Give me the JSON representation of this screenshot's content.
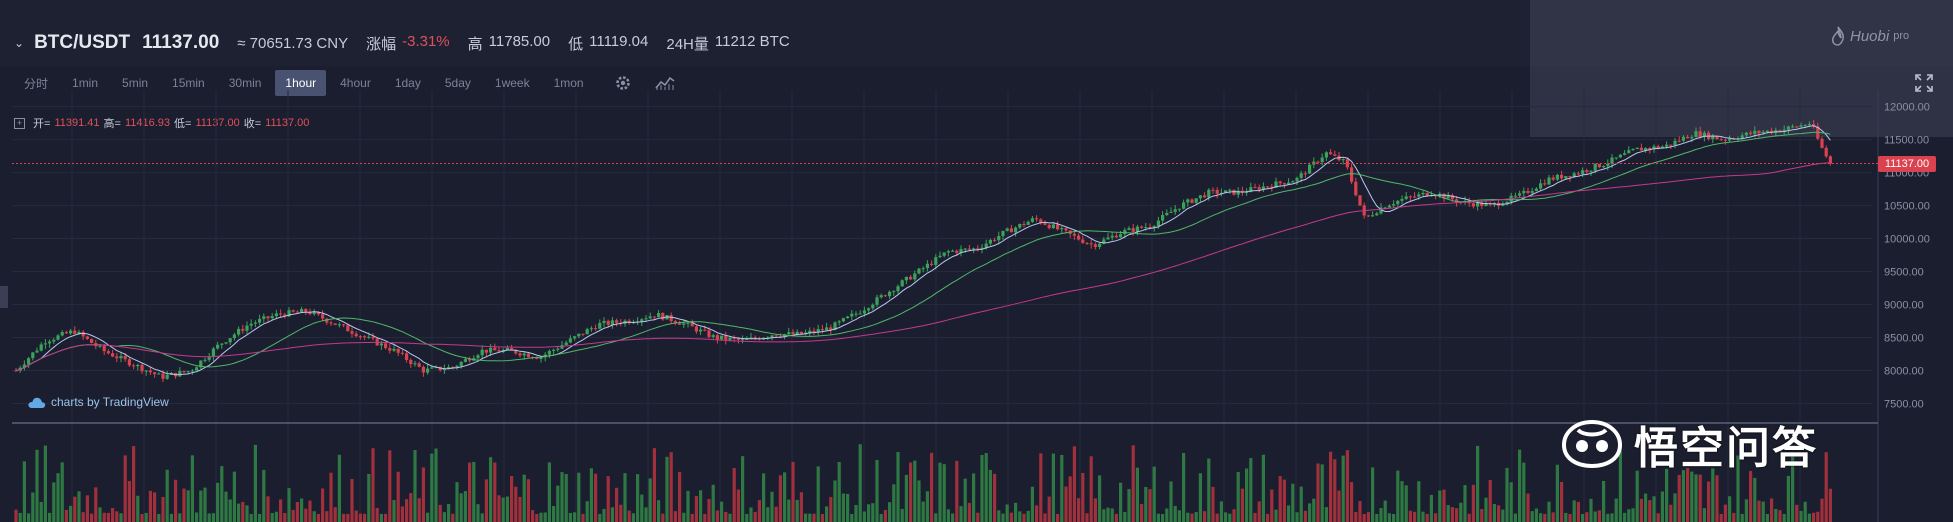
{
  "ticker": {
    "pair": "BTC/USDT",
    "last": "11137.00",
    "cny": "≈ 70651.73 CNY",
    "change_label": "涨幅",
    "change_value": "-3.31%",
    "high_label": "高",
    "high_value": "11785.00",
    "low_label": "低",
    "low_value": "11119.04",
    "vol_label": "24H量",
    "vol_value": "11212 BTC"
  },
  "intervals": [
    "分时",
    "1min",
    "5min",
    "15min",
    "30min",
    "1hour",
    "4hour",
    "1day",
    "5day",
    "1week",
    "1mon"
  ],
  "active_interval": "1hour",
  "icons": [
    "settings-icon",
    "indicators-icon",
    "fullscreen-icon"
  ],
  "ohlc": {
    "open_label": "开=",
    "open": "11391.41",
    "high_label": "高=",
    "high": "11416.93",
    "low_label": "低=",
    "low": "11137.00",
    "close_label": "收=",
    "close": "11137.00"
  },
  "tradingview": "charts by TradingView",
  "brand": {
    "huobi": "Huobi",
    "huobi_sub": "pro",
    "wukong": "悟空问答"
  },
  "colors": {
    "up": "#3aa35a",
    "down": "#d9424e",
    "ma_fast": "#b7c7f0",
    "ma_mid": "#4fb86a",
    "ma_slow": "#c43a8e",
    "current_line": "#d9424e"
  },
  "chart_data": {
    "type": "candlestick",
    "title": "BTC/USDT",
    "interval": "1hour",
    "y_ticks": [
      7500,
      8000,
      8500,
      9000,
      9500,
      10000,
      10500,
      11000,
      11500,
      12000
    ],
    "ylim": [
      7250,
      12100
    ],
    "current_price": 11137.0,
    "current_price_label": "11137.00",
    "price_path": [
      [
        0,
        8000
      ],
      [
        3,
        8450
      ],
      [
        6,
        8600
      ],
      [
        9,
        8300
      ],
      [
        12,
        8100
      ],
      [
        15,
        7900
      ],
      [
        18,
        8000
      ],
      [
        21,
        8400
      ],
      [
        24,
        8700
      ],
      [
        27,
        8850
      ],
      [
        30,
        8900
      ],
      [
        33,
        8700
      ],
      [
        36,
        8500
      ],
      [
        39,
        8300
      ],
      [
        42,
        8000
      ],
      [
        45,
        8050
      ],
      [
        48,
        8300
      ],
      [
        51,
        8300
      ],
      [
        54,
        8200
      ],
      [
        57,
        8450
      ],
      [
        60,
        8700
      ],
      [
        63,
        8750
      ],
      [
        66,
        8850
      ],
      [
        69,
        8700
      ],
      [
        72,
        8500
      ],
      [
        75,
        8450
      ],
      [
        78,
        8550
      ],
      [
        81,
        8550
      ],
      [
        84,
        8650
      ],
      [
        87,
        8900
      ],
      [
        90,
        9200
      ],
      [
        93,
        9500
      ],
      [
        96,
        9800
      ],
      [
        99,
        9850
      ],
      [
        102,
        10100
      ],
      [
        105,
        10300
      ],
      [
        108,
        10100
      ],
      [
        111,
        9900
      ],
      [
        114,
        10100
      ],
      [
        117,
        10200
      ],
      [
        120,
        10500
      ],
      [
        123,
        10700
      ],
      [
        126,
        10700
      ],
      [
        129,
        10800
      ],
      [
        132,
        10900
      ],
      [
        135,
        11300
      ],
      [
        137,
        11150
      ],
      [
        139,
        10300
      ],
      [
        141,
        10500
      ],
      [
        143,
        10600
      ],
      [
        146,
        10700
      ],
      [
        149,
        10550
      ],
      [
        152,
        10500
      ],
      [
        155,
        10650
      ],
      [
        158,
        10900
      ],
      [
        161,
        11000
      ],
      [
        164,
        11150
      ],
      [
        167,
        11350
      ],
      [
        170,
        11400
      ],
      [
        173,
        11600
      ],
      [
        176,
        11500
      ],
      [
        179,
        11600
      ],
      [
        182,
        11650
      ],
      [
        185,
        11750
      ],
      [
        186,
        11400
      ],
      [
        187,
        11137
      ]
    ]
  }
}
